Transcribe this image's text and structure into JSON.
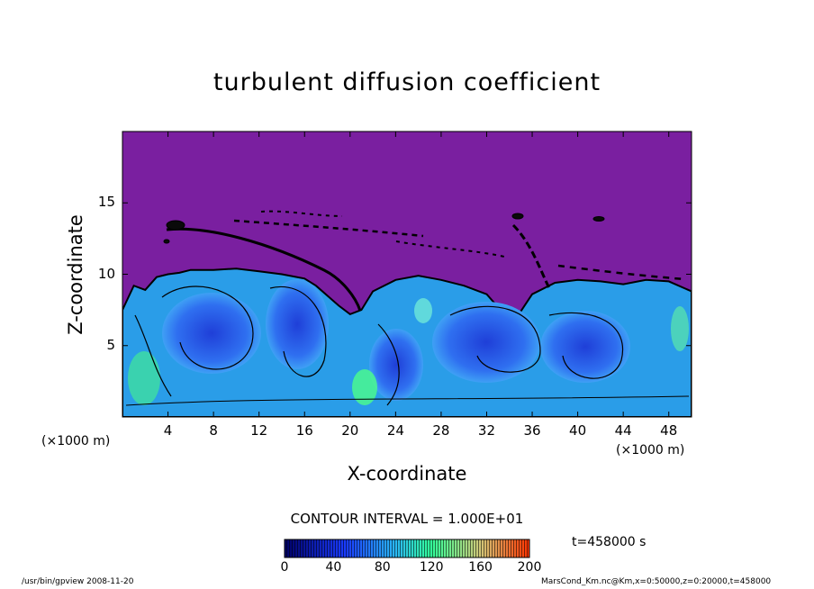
{
  "chart_data": {
    "type": "heatmap",
    "title": "turbulent diffusion coefficient",
    "xlabel": "X-coordinate",
    "ylabel": "Z-coordinate",
    "x_unit_label": "(×1000 m)",
    "x_range": [
      0,
      50
    ],
    "y_range": [
      0,
      20
    ],
    "x_ticks": [
      4,
      8,
      12,
      16,
      20,
      24,
      28,
      32,
      36,
      40,
      44,
      48
    ],
    "y_ticks": [
      5,
      10,
      15
    ],
    "contour_interval_text": "CONTOUR INTERVAL = 1.000E+01",
    "time_text": "t=458000 s",
    "colorbar": {
      "min": 0,
      "max": 200,
      "ticks": [
        0,
        40,
        80,
        120,
        160,
        200
      ],
      "colors": [
        "#000066",
        "#1a1aff",
        "#29b6f6",
        "#33ff99",
        "#c8c864",
        "#ff3300"
      ]
    },
    "background_value_color": "#7a1fa0",
    "boundary_profile": [
      [
        0,
        7.5
      ],
      [
        1,
        9.2
      ],
      [
        2,
        8.9
      ],
      [
        3,
        9.8
      ],
      [
        4,
        10.0
      ],
      [
        5,
        10.1
      ],
      [
        6,
        10.3
      ],
      [
        8,
        10.3
      ],
      [
        10,
        10.4
      ],
      [
        12,
        10.2
      ],
      [
        14,
        10.0
      ],
      [
        16,
        9.7
      ],
      [
        17,
        9.2
      ],
      [
        18,
        8.5
      ],
      [
        19,
        7.8
      ],
      [
        20,
        7.2
      ],
      [
        21,
        7.5
      ],
      [
        22,
        8.8
      ],
      [
        24,
        9.6
      ],
      [
        26,
        9.9
      ],
      [
        28,
        9.6
      ],
      [
        30,
        9.2
      ],
      [
        32,
        8.6
      ],
      [
        33,
        7.7
      ],
      [
        34,
        6.9
      ],
      [
        35,
        7.4
      ],
      [
        36,
        8.6
      ],
      [
        38,
        9.4
      ],
      [
        40,
        9.6
      ],
      [
        42,
        9.5
      ],
      [
        44,
        9.3
      ],
      [
        46,
        9.6
      ],
      [
        48,
        9.5
      ],
      [
        50,
        8.8
      ]
    ]
  },
  "footer": {
    "left": "/usr/bin/gpview  2008-11-20",
    "right": "MarsCond_Km.nc@Km,x=0:50000,z=0:20000,t=458000"
  }
}
